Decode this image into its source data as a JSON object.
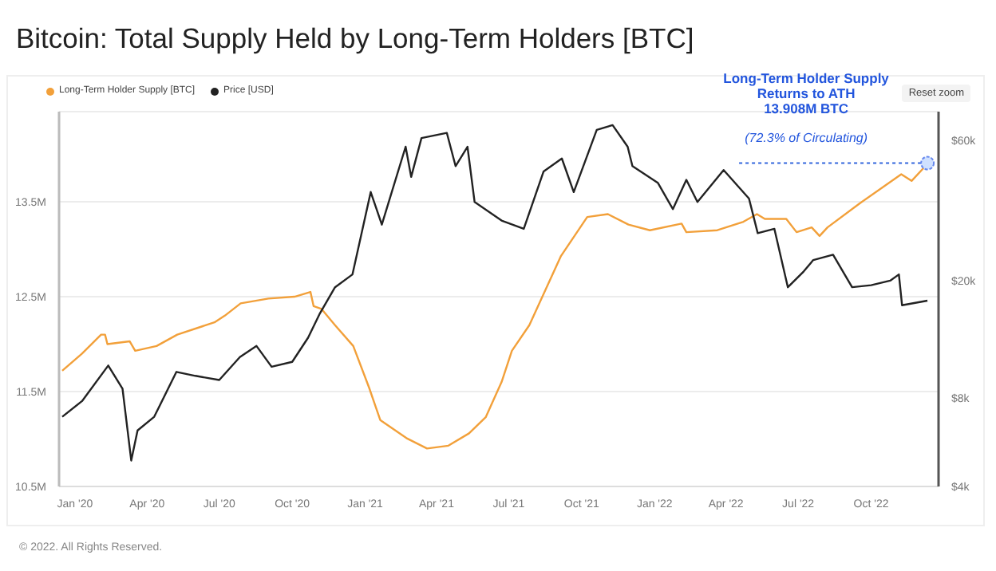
{
  "chart_data": {
    "type": "line",
    "title": "Bitcoin: Total Supply Held by Long-Term Holders [BTC]",
    "series": [
      {
        "name": "Long-Term Holder Supply [BTC]",
        "color": "#f2a03a",
        "axis": "y",
        "x": [
          "2019-12-16",
          "2020-01-10",
          "2020-02-03",
          "2020-02-08",
          "2020-02-11",
          "2020-03-10",
          "2020-03-17",
          "2020-04-13",
          "2020-05-09",
          "2020-06-25",
          "2020-07-08",
          "2020-07-28",
          "2020-09-01",
          "2020-10-04",
          "2020-10-24",
          "2020-10-28",
          "2020-11-07",
          "2020-11-24",
          "2020-12-17",
          "2021-01-06",
          "2021-01-20",
          "2021-02-22",
          "2021-03-20",
          "2021-04-16",
          "2021-05-12",
          "2021-06-02",
          "2021-06-22",
          "2021-07-05",
          "2021-07-27",
          "2021-09-05",
          "2021-10-08",
          "2021-11-03",
          "2021-11-29",
          "2021-12-26",
          "2022-02-04",
          "2022-02-10",
          "2022-03-21",
          "2022-04-23",
          "2022-05-10",
          "2022-05-20",
          "2022-06-16",
          "2022-06-29",
          "2022-07-18",
          "2022-07-28",
          "2022-08-07",
          "2022-09-16",
          "2022-11-08",
          "2022-11-21",
          "2022-12-11"
        ],
        "values": [
          11.72,
          11.9,
          12.1,
          12.1,
          12.0,
          12.03,
          11.93,
          11.98,
          12.1,
          12.23,
          12.3,
          12.43,
          12.48,
          12.5,
          12.55,
          12.4,
          12.37,
          12.2,
          11.98,
          11.54,
          11.2,
          11.01,
          10.9,
          10.93,
          11.06,
          11.23,
          11.6,
          11.93,
          12.2,
          12.93,
          13.34,
          13.37,
          13.26,
          13.2,
          13.27,
          13.18,
          13.2,
          13.29,
          13.37,
          13.32,
          13.32,
          13.18,
          13.23,
          13.14,
          13.23,
          13.48,
          13.79,
          13.72,
          13.9
        ]
      },
      {
        "name": "Price [USD]",
        "color": "#222222",
        "axis": "y2",
        "x": [
          "2019-12-16",
          "2020-01-10",
          "2020-02-12",
          "2020-03-01",
          "2020-03-12",
          "2020-03-20",
          "2020-04-10",
          "2020-05-08",
          "2020-06-01",
          "2020-07-01",
          "2020-07-27",
          "2020-08-17",
          "2020-09-05",
          "2020-10-01",
          "2020-10-21",
          "2020-11-05",
          "2020-11-24",
          "2020-12-16",
          "2021-01-08",
          "2021-01-22",
          "2021-02-21",
          "2021-02-28",
          "2021-03-13",
          "2021-04-14",
          "2021-04-25",
          "2021-05-10",
          "2021-05-19",
          "2021-06-22",
          "2021-07-20",
          "2021-08-14",
          "2021-09-06",
          "2021-09-21",
          "2021-10-20",
          "2021-11-09",
          "2021-11-28",
          "2021-12-04",
          "2022-01-05",
          "2022-01-24",
          "2022-02-10",
          "2022-02-24",
          "2022-03-29",
          "2022-04-30",
          "2022-05-11",
          "2022-06-01",
          "2022-06-18",
          "2022-07-08",
          "2022-07-20",
          "2022-08-14",
          "2022-09-07",
          "2022-10-01",
          "2022-10-25",
          "2022-11-05",
          "2022-11-09",
          "2022-12-11"
        ],
        "values": [
          6900,
          7800,
          10300,
          8600,
          4900,
          6200,
          6900,
          9800,
          9500,
          9200,
          11000,
          12000,
          10200,
          10600,
          12800,
          15500,
          19000,
          21000,
          40000,
          31000,
          57000,
          45000,
          61000,
          63500,
          49000,
          57000,
          37000,
          32000,
          30000,
          47000,
          52000,
          40000,
          65000,
          67500,
          57000,
          49000,
          43000,
          35000,
          44000,
          37000,
          47500,
          38000,
          29000,
          30000,
          19000,
          21500,
          23500,
          24500,
          19000,
          19300,
          20000,
          21000,
          16500,
          17100
        ]
      }
    ],
    "xlim": [
      "2019-12-12",
      "2022-12-25"
    ],
    "xticks": [
      {
        "value": "2020-01-01",
        "label": "Jan '20"
      },
      {
        "value": "2020-04-01",
        "label": "Apr '20"
      },
      {
        "value": "2020-07-01",
        "label": "Jul '20"
      },
      {
        "value": "2020-10-01",
        "label": "Oct '20"
      },
      {
        "value": "2021-01-01",
        "label": "Jan '21"
      },
      {
        "value": "2021-04-01",
        "label": "Apr '21"
      },
      {
        "value": "2021-07-01",
        "label": "Jul '21"
      },
      {
        "value": "2021-10-01",
        "label": "Oct '21"
      },
      {
        "value": "2022-01-01",
        "label": "Jan '22"
      },
      {
        "value": "2022-04-01",
        "label": "Apr '22"
      },
      {
        "value": "2022-07-01",
        "label": "Jul '22"
      },
      {
        "value": "2022-10-01",
        "label": "Oct '22"
      }
    ],
    "ylim": [
      10.5,
      14.45
    ],
    "yticks": [
      {
        "value": 10.5,
        "label": "10.5M"
      },
      {
        "value": 11.5,
        "label": "11.5M"
      },
      {
        "value": 12.5,
        "label": "12.5M"
      },
      {
        "value": 13.5,
        "label": "13.5M"
      }
    ],
    "y2lim": [
      4000,
      75000
    ],
    "y2ticks": [
      {
        "value": 4000,
        "label": "$4k"
      },
      {
        "value": 8000,
        "label": "$8k"
      },
      {
        "value": 20000,
        "label": "$20k"
      },
      {
        "value": 60000,
        "label": "$60k"
      }
    ],
    "log": "y2",
    "grid": "y",
    "legend": "top left",
    "marker": "none",
    "line_style": "solid",
    "annotations": [
      {
        "text": "Long-Term Holder Supply\nReturns to ATH\n13.908M BTC\n(72.3% of Circulating)",
        "x": "2022-12-11",
        "y": 13.908
      },
      "Reset zoom",
      "© 2022. All Rights Reserved."
    ]
  }
}
